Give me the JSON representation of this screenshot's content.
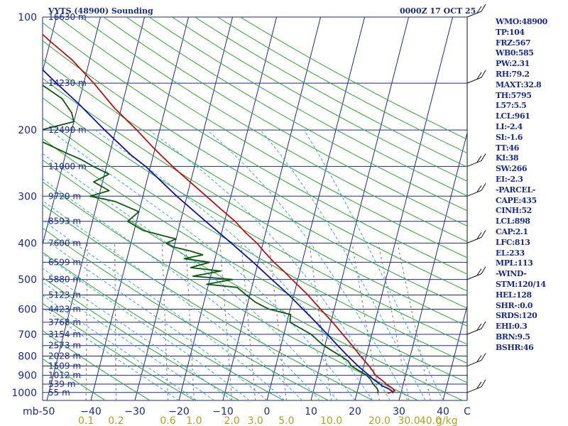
{
  "header": {
    "station": "VYTS (48900) Sounding",
    "time": "0000Z 17 OCT 25"
  },
  "indices": [
    "WMO:48900",
    "TP:104",
    "FRZ:567",
    "WB0:585",
    "PW:2.31",
    "RH:79.2",
    "MAXT:32.8",
    "TH:5795",
    "L57:5.5",
    "LCL:961",
    "LI:-2.4",
    "SI:-1.6",
    "TT:46",
    "KI:38",
    "SW:266",
    "EI:-2.3",
    "-PARCEL-",
    "CAPE:435",
    "CINH:52",
    "LCL:898",
    "CAP:2.1",
    "LFC:813",
    "EL:233",
    "MPL:113",
    "-WIND-",
    "STM:120/14",
    "HEL:128",
    "SHR-:0.0",
    "SRDS:120",
    "EHI:0.3",
    "BRN:9.5",
    "BSHR:46"
  ],
  "colors": {
    "background": "#ffffff",
    "isobar": "#1a2a8c",
    "isotherm": "#1a2a8c",
    "dry_adiabat": "#2ea82e",
    "moist_adiabat": "#3ab0c8",
    "mixing_ratio": "#777777",
    "temperature": "#c01010",
    "dewpoint": "#0a5a0a",
    "parcel": "#1010b0",
    "axis_text": "#1a2a8c",
    "mixing_text": "#b8a020"
  },
  "chart_data": {
    "type": "line",
    "title": "VYTS (48900) Sounding",
    "subtitle": "0000Z 17 OCT 25",
    "pressure_ticks": [
      100,
      200,
      300,
      400,
      500,
      600,
      700,
      800,
      900,
      1000
    ],
    "pressure_range": [
      100,
      1050
    ],
    "temperature_ticks": [
      -50,
      -40,
      -30,
      -20,
      -10,
      0,
      10,
      20,
      30,
      40
    ],
    "temperature_tick_labels": [
      "-50",
      "−40",
      "−30",
      "−20",
      "−10",
      "0",
      "10",
      "20",
      "30",
      "40"
    ],
    "pressure_unit": "mb",
    "temperature_unit": "C",
    "mixing_ratio_labels": [
      "0.1",
      "0.2",
      "0.6",
      "1.0",
      "2.0",
      "3.0",
      "5.0",
      "10.0",
      "20.0",
      "30.0",
      "40.0"
    ],
    "mixing_ratio_values": [
      0.1,
      0.2,
      0.6,
      1.0,
      2.0,
      3.0,
      5.0,
      10.0,
      20.0,
      30.0,
      40.0
    ],
    "mixing_ratio_unit": "g/kg",
    "height_levels": [
      {
        "p": 100,
        "label": "16630 m"
      },
      {
        "p": 150,
        "label": "14230 m"
      },
      {
        "p": 200,
        "label": "12490 m"
      },
      {
        "p": 250,
        "label": "11000 m"
      },
      {
        "p": 300,
        "label": "9720 m"
      },
      {
        "p": 350,
        "label": "8593 m"
      },
      {
        "p": 400,
        "label": "7600 m"
      },
      {
        "p": 450,
        "label": "6599 m"
      },
      {
        "p": 500,
        "label": "5880 m"
      },
      {
        "p": 550,
        "label": "5123 m"
      },
      {
        "p": 600,
        "label": "4423 m"
      },
      {
        "p": 650,
        "label": "3768 m"
      },
      {
        "p": 700,
        "label": "3154 m"
      },
      {
        "p": 750,
        "label": "2573 m"
      },
      {
        "p": 800,
        "label": "2028 m"
      },
      {
        "p": 850,
        "label": "1509 m"
      },
      {
        "p": 900,
        "label": "1012 m"
      },
      {
        "p": 950,
        "label": "539 m"
      },
      {
        "p": 1000,
        "label": "55 m"
      }
    ],
    "series": [
      {
        "name": "Temperature",
        "points": [
          [
            1005,
            27
          ],
          [
            1000,
            27.5
          ],
          [
            990,
            28.5
          ],
          [
            975,
            27.8
          ],
          [
            950,
            26.2
          ],
          [
            925,
            24.8
          ],
          [
            900,
            23.2
          ],
          [
            875,
            22.3
          ],
          [
            850,
            21.2
          ],
          [
            800,
            18.7
          ],
          [
            750,
            16.2
          ],
          [
            700,
            13.4
          ],
          [
            650,
            10.4
          ],
          [
            600,
            6.9
          ],
          [
            550,
            3.2
          ],
          [
            500,
            -1.3
          ],
          [
            475,
            -3.7
          ],
          [
            450,
            -6.4
          ],
          [
            425,
            -8.9
          ],
          [
            400,
            -11.4
          ],
          [
            375,
            -14.6
          ],
          [
            350,
            -17.6
          ],
          [
            325,
            -21.5
          ],
          [
            300,
            -25.6
          ],
          [
            275,
            -30.1
          ],
          [
            250,
            -35
          ],
          [
            225,
            -40
          ],
          [
            200,
            -45.2
          ],
          [
            175,
            -51.5
          ],
          [
            150,
            -57.7
          ],
          [
            130,
            -64
          ],
          [
            115,
            -70.5
          ],
          [
            105,
            -75
          ],
          [
            100,
            -76
          ]
        ]
      },
      {
        "name": "Dewpoint",
        "points": [
          [
            1005,
            24.7
          ],
          [
            990,
            24.7
          ],
          [
            975,
            24.3
          ],
          [
            950,
            23.2
          ],
          [
            925,
            22.4
          ],
          [
            900,
            21.2
          ],
          [
            875,
            19.2
          ],
          [
            850,
            17.2
          ],
          [
            825,
            16.2
          ],
          [
            800,
            14.2
          ],
          [
            750,
            9.7
          ],
          [
            700,
            6.2
          ],
          [
            650,
            0.7
          ],
          [
            620,
            0.4
          ],
          [
            600,
            -4.8
          ],
          [
            575,
            -8.3
          ],
          [
            550,
            -10.8
          ],
          [
            525,
            -13.3
          ],
          [
            515,
            -20.4
          ],
          [
            500,
            -14.8
          ],
          [
            490,
            -24
          ],
          [
            475,
            -18
          ],
          [
            465,
            -25
          ],
          [
            450,
            -21
          ],
          [
            440,
            -27
          ],
          [
            430,
            -23
          ],
          [
            420,
            -26
          ],
          [
            410,
            -30
          ],
          [
            400,
            -32
          ],
          [
            390,
            -30
          ],
          [
            380,
            -34
          ],
          [
            370,
            -38
          ],
          [
            350,
            -42
          ],
          [
            330,
            -40
          ],
          [
            310,
            -46
          ],
          [
            300,
            -52
          ],
          [
            290,
            -48
          ],
          [
            275,
            -52
          ],
          [
            262,
            -49
          ],
          [
            250,
            -53
          ],
          [
            240,
            -56
          ],
          [
            230,
            -60
          ],
          [
            215,
            -66
          ],
          [
            200,
            -67
          ],
          [
            190,
            -60
          ],
          [
            180,
            -61
          ],
          [
            165,
            -64
          ],
          [
            150,
            -70
          ],
          [
            130,
            -79
          ],
          [
            115,
            -84
          ],
          [
            105,
            -89
          ],
          [
            100,
            -89
          ]
        ]
      },
      {
        "name": "Parcel",
        "points": [
          [
            1005,
            28.2
          ],
          [
            990,
            27.8
          ],
          [
            975,
            26.8
          ],
          [
            961,
            25.4
          ],
          [
            925,
            23.1
          ],
          [
            900,
            21.7
          ],
          [
            850,
            18.7
          ],
          [
            800,
            15.8
          ],
          [
            750,
            12.9
          ],
          [
            700,
            9.9
          ],
          [
            650,
            6.6
          ],
          [
            600,
            2.9
          ],
          [
            550,
            -1.1
          ],
          [
            500,
            -5.9
          ],
          [
            450,
            -11.1
          ],
          [
            400,
            -17.2
          ],
          [
            350,
            -24.3
          ],
          [
            300,
            -32.3
          ],
          [
            250,
            -41.1
          ],
          [
            233,
            -45.1
          ],
          [
            200,
            -52.5
          ],
          [
            170,
            -60
          ],
          [
            150,
            -66.2
          ],
          [
            130,
            -73
          ],
          [
            113,
            -80.5
          ],
          [
            100,
            -86
          ]
        ]
      }
    ],
    "wind_barbs": [
      {
        "p": 100
      },
      {
        "p": 150
      },
      {
        "p": 250
      },
      {
        "p": 300
      },
      {
        "p": 400
      },
      {
        "p": 500
      },
      {
        "p": 700
      },
      {
        "p": 850
      },
      {
        "p": 1000
      }
    ]
  }
}
